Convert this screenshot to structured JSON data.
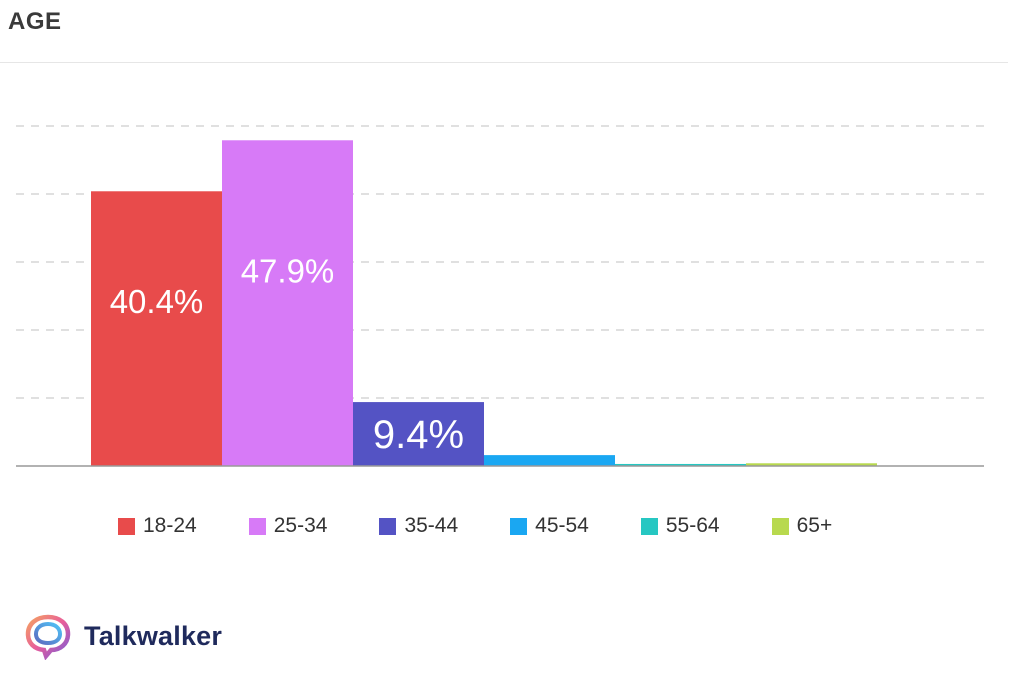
{
  "header": {
    "title": "AGE"
  },
  "brand": {
    "name": "Talkwalker",
    "logo_icon": "talkwalker-logo-icon"
  },
  "chart_data": {
    "type": "bar",
    "title": "AGE",
    "xlabel": "",
    "ylabel": "",
    "ylim": [
      0,
      50
    ],
    "grid": true,
    "legend_position": "bottom",
    "categories": [
      "18-24",
      "25-34",
      "35-44",
      "45-54",
      "55-64",
      "65+"
    ],
    "values": [
      40.4,
      47.9,
      9.4,
      1.6,
      0.3,
      0.4
    ],
    "data_labels": [
      "40.4%",
      "47.9%",
      "9.4%",
      "",
      "",
      ""
    ],
    "colors": [
      "#e84b4b",
      "#d77af7",
      "#5453c4",
      "#1aa7f2",
      "#26c7c2",
      "#b8d94e"
    ]
  }
}
